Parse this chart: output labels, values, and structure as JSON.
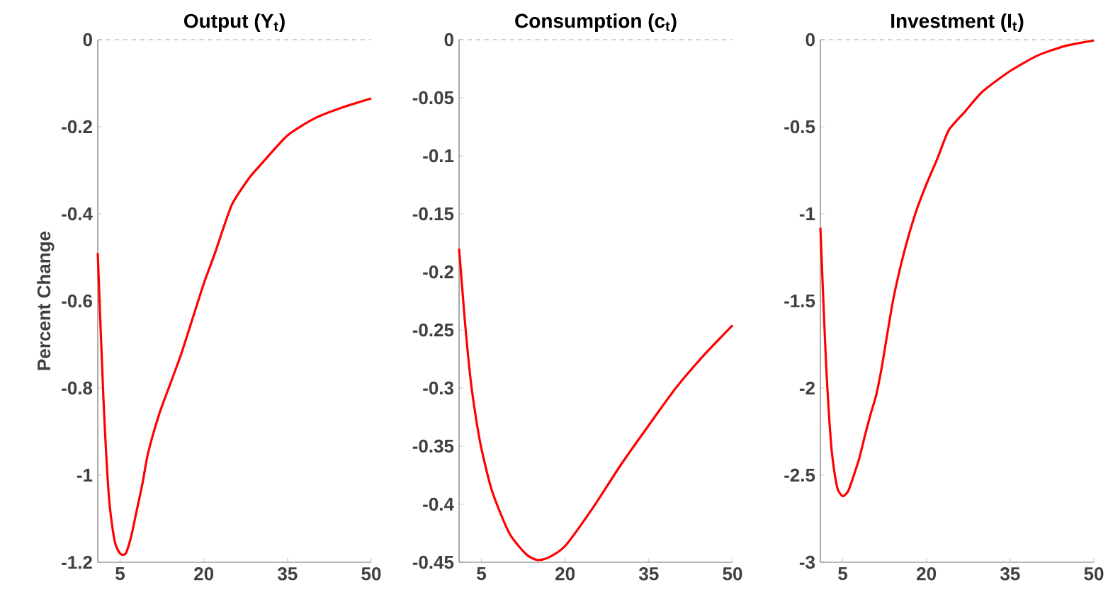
{
  "chart_data": [
    {
      "type": "line",
      "title": "Output (Y$_{t}$)",
      "ylabel": "Percent Change",
      "xlim": [
        1,
        50
      ],
      "xticks": [
        5,
        20,
        35,
        50
      ],
      "ylim": [
        -1.2,
        0
      ],
      "yticks": [
        -1.2,
        -1,
        -0.8,
        -0.6,
        -0.4,
        -0.2,
        0
      ],
      "line_style": "solid",
      "marker": "none",
      "ref_lines": [
        {
          "axis": "y",
          "value": 0,
          "color": "#a6a6a6",
          "line_style": "dashed"
        }
      ],
      "x": [
        1,
        2,
        3,
        4,
        5,
        6,
        7,
        8,
        9,
        10,
        12,
        14,
        16,
        18,
        20,
        22,
        25,
        28,
        30,
        35,
        40,
        45,
        50
      ],
      "series": [
        {
          "color": "#ff0000",
          "values": [
            -0.49,
            -0.82,
            -1.05,
            -1.15,
            -1.18,
            -1.18,
            -1.14,
            -1.08,
            -1.02,
            -0.95,
            -0.86,
            -0.79,
            -0.72,
            -0.64,
            -0.56,
            -0.49,
            -0.38,
            -0.32,
            -0.29,
            -0.22,
            -0.18,
            -0.155,
            -0.135
          ]
        }
      ]
    },
    {
      "type": "line",
      "title": "Consumption (c$_{t}$)",
      "xlim": [
        1,
        50
      ],
      "xticks": [
        5,
        20,
        35,
        50
      ],
      "ylim": [
        -0.45,
        0
      ],
      "yticks": [
        -0.45,
        -0.4,
        -0.35,
        -0.3,
        -0.25,
        -0.2,
        -0.15,
        -0.1,
        -0.05,
        0
      ],
      "line_style": "solid",
      "marker": "none",
      "ref_lines": [
        {
          "axis": "y",
          "value": 0,
          "color": "#a6a6a6",
          "line_style": "dashed"
        }
      ],
      "x": [
        1,
        2,
        3,
        4,
        5,
        7,
        10,
        13,
        15,
        17,
        20,
        25,
        30,
        35,
        40,
        45,
        50
      ],
      "series": [
        {
          "color": "#ff0000",
          "values": [
            -0.18,
            -0.24,
            -0.29,
            -0.325,
            -0.352,
            -0.39,
            -0.425,
            -0.443,
            -0.448,
            -0.446,
            -0.436,
            -0.403,
            -0.366,
            -0.332,
            -0.299,
            -0.271,
            -0.246
          ]
        }
      ]
    },
    {
      "type": "line",
      "title": "Investment (I$_{t}$)",
      "xlim": [
        1,
        50
      ],
      "xticks": [
        5,
        20,
        35,
        50
      ],
      "ylim": [
        -3,
        0
      ],
      "yticks": [
        -3,
        -2.5,
        -2,
        -1.5,
        -1,
        -0.5,
        0
      ],
      "line_style": "solid",
      "marker": "none",
      "ref_lines": [
        {
          "axis": "y",
          "value": 0,
          "color": "#a6a6a6",
          "line_style": "dashed"
        }
      ],
      "x": [
        1,
        2,
        3,
        4,
        5,
        6,
        7,
        8,
        9,
        10,
        11,
        12,
        14,
        16,
        18,
        20,
        22,
        24,
        27,
        30,
        35,
        40,
        45,
        50
      ],
      "series": [
        {
          "color": "#ff0000",
          "values": [
            -1.08,
            -1.85,
            -2.35,
            -2.57,
            -2.62,
            -2.59,
            -2.5,
            -2.4,
            -2.27,
            -2.15,
            -2.04,
            -1.88,
            -1.5,
            -1.22,
            -1.0,
            -0.83,
            -0.68,
            -0.52,
            -0.41,
            -0.3,
            -0.18,
            -0.09,
            -0.035,
            -0.005
          ]
        }
      ]
    }
  ]
}
